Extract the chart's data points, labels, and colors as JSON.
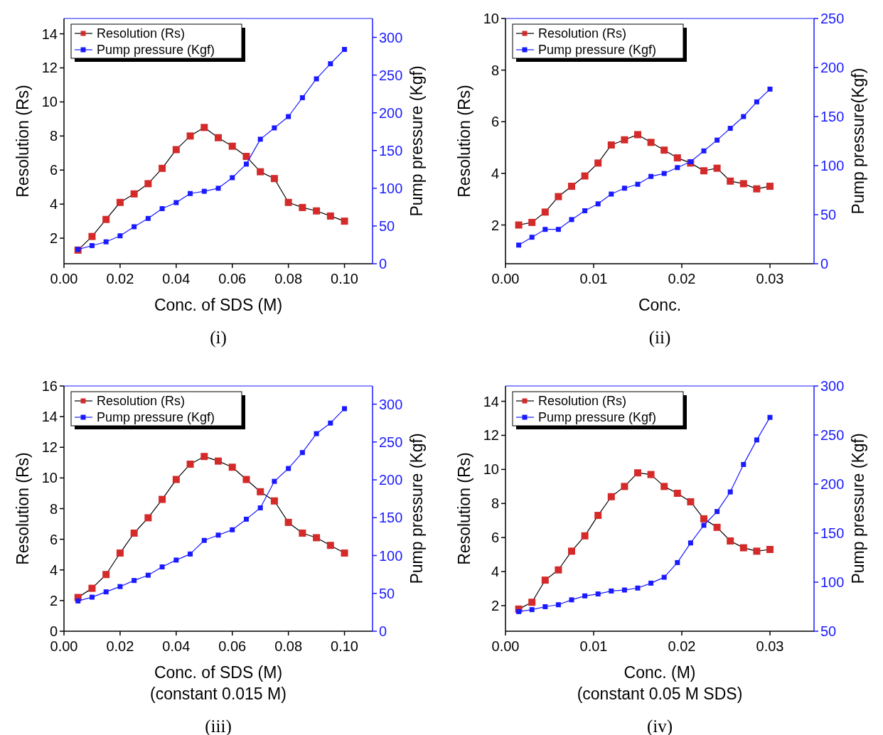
{
  "chart_data": [
    {
      "type": "line",
      "xlabel": "Conc. of SDS (M)",
      "ylabel": "Resolution (Rs)",
      "y2label": "Pump pressure (Kgf)",
      "annotations": [
        "(i)"
      ],
      "legend": "top left",
      "marker": "square",
      "x": [
        0.005,
        0.01,
        0.015,
        0.02,
        0.025,
        0.03,
        0.035,
        0.04,
        0.045,
        0.05,
        0.055,
        0.06,
        0.065,
        0.07,
        0.075,
        0.08,
        0.085,
        0.09,
        0.095,
        0.1
      ],
      "xlim": [
        0,
        0.11
      ],
      "xticks": [
        {
          "value": 0,
          "label": "0.00"
        },
        {
          "value": 0.02,
          "label": "0.02"
        },
        {
          "value": 0.04,
          "label": "0.04"
        },
        {
          "value": 0.06,
          "label": "0.06"
        },
        {
          "value": 0.08,
          "label": "0.08"
        },
        {
          "value": 0.1,
          "label": "0.10"
        }
      ],
      "ylim": [
        0.5,
        14.9
      ],
      "yticks": [
        2,
        4,
        6,
        8,
        10,
        12,
        14
      ],
      "y2lim": [
        0,
        325
      ],
      "y2ticks": [
        0,
        50,
        100,
        150,
        200,
        250,
        300
      ],
      "series": [
        {
          "name": "Resolution (Rs)",
          "color": "#d42a2a",
          "values": [
            1.3,
            2.1,
            3.1,
            4.1,
            4.6,
            5.2,
            6.1,
            7.2,
            8.0,
            8.5,
            7.9,
            7.4,
            6.8,
            5.9,
            5.5,
            4.1,
            3.8,
            3.6,
            3.3,
            3.0
          ]
        },
        {
          "name": "Pump pressure (Kgf)",
          "color": "#1a1aff",
          "axis": "y2",
          "values": [
            19,
            24,
            29,
            37,
            49,
            60,
            73,
            81,
            93,
            96,
            100,
            114,
            132,
            165,
            180,
            195,
            220,
            245,
            265,
            284
          ]
        }
      ]
    },
    {
      "type": "line",
      "xlabel": "Conc.",
      "ylabel": "Resolution (Rs)",
      "y2label": "Pump pressure(Kgf)",
      "annotations": [
        "(ii)"
      ],
      "legend": "top left",
      "marker": "square",
      "x": [
        0.0015,
        0.003,
        0.0045,
        0.006,
        0.0075,
        0.009,
        0.0105,
        0.012,
        0.0135,
        0.015,
        0.0165,
        0.018,
        0.0195,
        0.021,
        0.0225,
        0.024,
        0.0255,
        0.027,
        0.0285,
        0.03
      ],
      "xlim": [
        0,
        0.035
      ],
      "xticks": [
        {
          "value": 0,
          "label": "0.00"
        },
        {
          "value": 0.01,
          "label": "0.01"
        },
        {
          "value": 0.02,
          "label": "0.02"
        },
        {
          "value": 0.03,
          "label": "0.03"
        }
      ],
      "ylim": [
        0.5,
        10
      ],
      "yticks": [
        2,
        4,
        6,
        8,
        10
      ],
      "y2lim": [
        0,
        250
      ],
      "y2ticks": [
        0,
        50,
        100,
        150,
        200,
        250
      ],
      "series": [
        {
          "name": "Resolution (Rs)",
          "color": "#d42a2a",
          "values": [
            2.0,
            2.1,
            2.5,
            3.1,
            3.5,
            3.9,
            4.4,
            5.1,
            5.3,
            5.5,
            5.2,
            4.9,
            4.6,
            4.4,
            4.1,
            4.2,
            3.7,
            3.6,
            3.4,
            3.5
          ]
        },
        {
          "name": "Pump pressure (Kgf)",
          "color": "#1a1aff",
          "axis": "y2",
          "values": [
            19,
            27,
            35,
            35,
            45,
            54,
            61,
            71,
            77,
            81,
            89,
            92,
            98,
            104,
            115,
            126,
            138,
            150,
            165,
            178
          ]
        }
      ]
    },
    {
      "type": "line",
      "xlabel": "Conc. of SDS (M)\n(constant 0.015 M)",
      "ylabel": "Resolution (Rs)",
      "y2label": "Pump pressure (Kgf)",
      "annotations": [
        "(iii)"
      ],
      "legend": "top left",
      "marker": "square",
      "x": [
        0.005,
        0.01,
        0.015,
        0.02,
        0.025,
        0.03,
        0.035,
        0.04,
        0.045,
        0.05,
        0.055,
        0.06,
        0.065,
        0.07,
        0.075,
        0.08,
        0.085,
        0.09,
        0.095,
        0.1
      ],
      "xlim": [
        0,
        0.11
      ],
      "xticks": [
        {
          "value": 0,
          "label": "0.00"
        },
        {
          "value": 0.02,
          "label": "0.02"
        },
        {
          "value": 0.04,
          "label": "0.04"
        },
        {
          "value": 0.06,
          "label": "0.06"
        },
        {
          "value": 0.08,
          "label": "0.08"
        },
        {
          "value": 0.1,
          "label": "0.10"
        }
      ],
      "ylim": [
        0,
        16
      ],
      "yticks": [
        0,
        2,
        4,
        6,
        8,
        10,
        12,
        14,
        16
      ],
      "y2lim": [
        0,
        324
      ],
      "y2ticks": [
        0,
        50,
        100,
        150,
        200,
        250,
        300
      ],
      "series": [
        {
          "name": "Resolution (Rs)",
          "color": "#d42a2a",
          "values": [
            2.2,
            2.8,
            3.7,
            5.1,
            6.4,
            7.4,
            8.6,
            9.9,
            10.9,
            11.4,
            11.1,
            10.7,
            9.9,
            9.1,
            8.5,
            7.1,
            6.4,
            6.1,
            5.6,
            5.1
          ]
        },
        {
          "name": "Pump pressure (Kgf)",
          "color": "#1a1aff",
          "axis": "y2",
          "values": [
            40,
            45,
            52,
            59,
            67,
            74,
            85,
            94,
            102,
            120,
            127,
            134,
            148,
            163,
            198,
            215,
            236,
            261,
            275,
            294
          ]
        }
      ]
    },
    {
      "type": "line",
      "xlabel": "Conc. (M)\n(constant 0.05 M SDS)",
      "ylabel": "Resolution (Rs)",
      "y2label": "Pump pressure  (Kgf)",
      "annotations": [
        "(iv)"
      ],
      "legend": "top left",
      "marker": "square",
      "x": [
        0.0015,
        0.003,
        0.0045,
        0.006,
        0.0075,
        0.009,
        0.0105,
        0.012,
        0.0135,
        0.015,
        0.0165,
        0.018,
        0.0195,
        0.021,
        0.0225,
        0.024,
        0.0255,
        0.027,
        0.0285,
        0.03
      ],
      "xlim": [
        0,
        0.035
      ],
      "xticks": [
        {
          "value": 0,
          "label": "0.00"
        },
        {
          "value": 0.01,
          "label": "0.01"
        },
        {
          "value": 0.02,
          "label": "0.02"
        },
        {
          "value": 0.03,
          "label": "0.03"
        }
      ],
      "ylim": [
        0.5,
        14.9
      ],
      "yticks": [
        2,
        4,
        6,
        8,
        10,
        12,
        14
      ],
      "y2lim": [
        50,
        300
      ],
      "y2ticks": [
        50,
        100,
        150,
        200,
        250,
        300
      ],
      "series": [
        {
          "name": "Resolution (Rs)",
          "color": "#d42a2a",
          "values": [
            1.8,
            2.2,
            3.5,
            4.1,
            5.2,
            6.1,
            7.3,
            8.4,
            9.0,
            9.8,
            9.7,
            9.0,
            8.6,
            8.1,
            7.1,
            6.6,
            5.8,
            5.4,
            5.2,
            5.3
          ]
        },
        {
          "name": "Pump pressure (Kgf)",
          "color": "#1a1aff",
          "axis": "y2",
          "values": [
            70,
            72,
            75,
            77,
            82,
            86,
            88,
            91,
            92,
            94,
            99,
            105,
            120,
            140,
            158,
            172,
            192,
            220,
            245,
            268
          ]
        }
      ]
    }
  ]
}
